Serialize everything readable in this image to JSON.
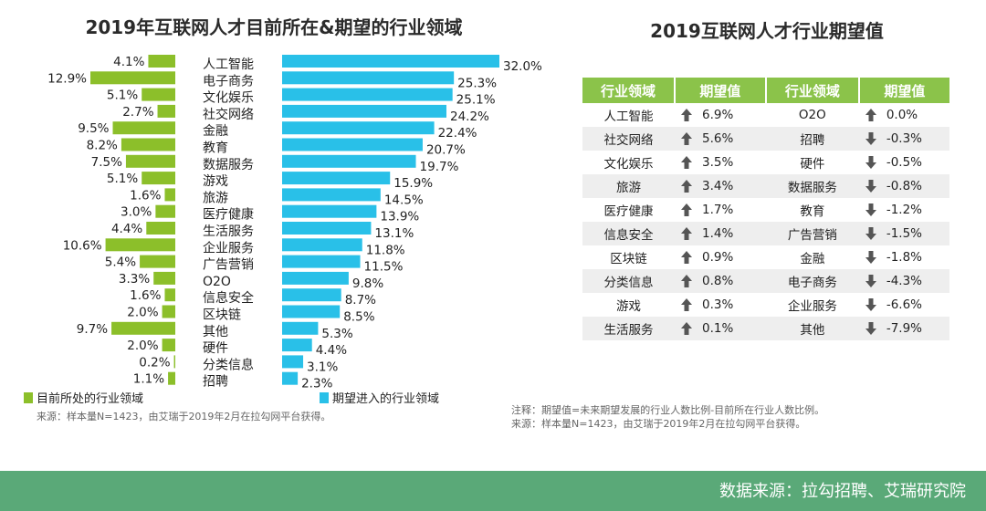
{
  "left_title": "2019年互联网人才目前所在&期望的行业领域",
  "right_title": "2019互联网人才行业期望值",
  "chart_data": {
    "type": "bar",
    "title": "2019年互联网人才目前所在&期望的行业领域",
    "orientation": "horizontal-butterfly",
    "categories": [
      "人工智能",
      "电子商务",
      "文化娱乐",
      "社交网络",
      "金融",
      "教育",
      "数据服务",
      "游戏",
      "旅游",
      "医疗健康",
      "生活服务",
      "企业服务",
      "广告营销",
      "O2O",
      "信息安全",
      "区块链",
      "其他",
      "硬件",
      "分类信息",
      "招聘"
    ],
    "series": [
      {
        "name": "目前所处的行业领域",
        "color": "#8cbf2a",
        "side": "left",
        "values": [
          4.1,
          12.9,
          5.1,
          2.7,
          9.5,
          8.2,
          7.5,
          5.1,
          1.6,
          3.0,
          4.4,
          10.6,
          5.4,
          3.3,
          1.6,
          2.0,
          9.7,
          2.0,
          0.2,
          1.1
        ],
        "labels": [
          "4.1%",
          "12.9%",
          "5.1%",
          "2.7%",
          "9.5%",
          "8.2%",
          "7.5%",
          "5.1%",
          "1.6%",
          "3.0%",
          "4.4%",
          "10.6%",
          "5.4%",
          "3.3%",
          "1.6%",
          "2.0%",
          "9.7%",
          "2.0%",
          "0.2%",
          "1.1%"
        ]
      },
      {
        "name": "期望进入的行业领域",
        "color": "#29c0e8",
        "side": "right",
        "values": [
          32.0,
          25.3,
          25.1,
          24.2,
          22.4,
          20.7,
          19.7,
          15.9,
          14.5,
          13.9,
          13.1,
          11.8,
          11.5,
          9.8,
          8.7,
          8.5,
          5.3,
          4.4,
          3.1,
          2.3
        ],
        "labels": [
          "32.0%",
          "25.3%",
          "25.1%",
          "24.2%",
          "22.4%",
          "20.7%",
          "19.7%",
          "15.9%",
          "14.5%",
          "13.9%",
          "13.1%",
          "11.8%",
          "11.5%",
          "9.8%",
          "8.7%",
          "8.5%",
          "5.3%",
          "4.4%",
          "3.1%",
          "2.3%"
        ]
      }
    ],
    "legend": [
      "目前所处的行业领域",
      "期望进入的行业领域"
    ]
  },
  "left_note": "来源：样本量N=1423，由艾瑞于2019年2月在拉勾网平台获得。",
  "table": {
    "headers": [
      "行业领域",
      "期望值",
      "行业领域",
      "期望值"
    ],
    "rows": [
      {
        "c1": "人工智能",
        "d1": "up",
        "v1": "6.9%",
        "c2": "O2O",
        "d2": "up",
        "v2": "0.0%"
      },
      {
        "c1": "社交网络",
        "d1": "up",
        "v1": "5.6%",
        "c2": "招聘",
        "d2": "down",
        "v2": "-0.3%"
      },
      {
        "c1": "文化娱乐",
        "d1": "up",
        "v1": "3.5%",
        "c2": "硬件",
        "d2": "down",
        "v2": "-0.5%"
      },
      {
        "c1": "旅游",
        "d1": "up",
        "v1": "3.4%",
        "c2": "数据服务",
        "d2": "down",
        "v2": "-0.8%"
      },
      {
        "c1": "医疗健康",
        "d1": "up",
        "v1": "1.7%",
        "c2": "教育",
        "d2": "down",
        "v2": "-1.2%"
      },
      {
        "c1": "信息安全",
        "d1": "up",
        "v1": "1.4%",
        "c2": "广告营销",
        "d2": "down",
        "v2": "-1.5%"
      },
      {
        "c1": "区块链",
        "d1": "up",
        "v1": "0.9%",
        "c2": "金融",
        "d2": "down",
        "v2": "-1.8%"
      },
      {
        "c1": "分类信息",
        "d1": "up",
        "v1": "0.8%",
        "c2": "电子商务",
        "d2": "down",
        "v2": "-4.3%"
      },
      {
        "c1": "游戏",
        "d1": "up",
        "v1": "0.3%",
        "c2": "企业服务",
        "d2": "down",
        "v2": "-6.6%"
      },
      {
        "c1": "生活服务",
        "d1": "up",
        "v1": "0.1%",
        "c2": "其他",
        "d2": "down",
        "v2": "-7.9%"
      }
    ]
  },
  "right_note_1": "注释：期望值=未来期望发展的行业人数比例-目前所在行业人数比例。",
  "right_note_2": "来源：样本量N=1423，由艾瑞于2019年2月在拉勾网平台获得。",
  "footer": "数据来源：拉勾招聘、艾瑞研究院",
  "colors": {
    "green_bar": "#8cbf2a",
    "blue_bar": "#29c0e8",
    "table_header": "#8bc34a",
    "footer": "#5aa978",
    "arrow": "#555555"
  }
}
